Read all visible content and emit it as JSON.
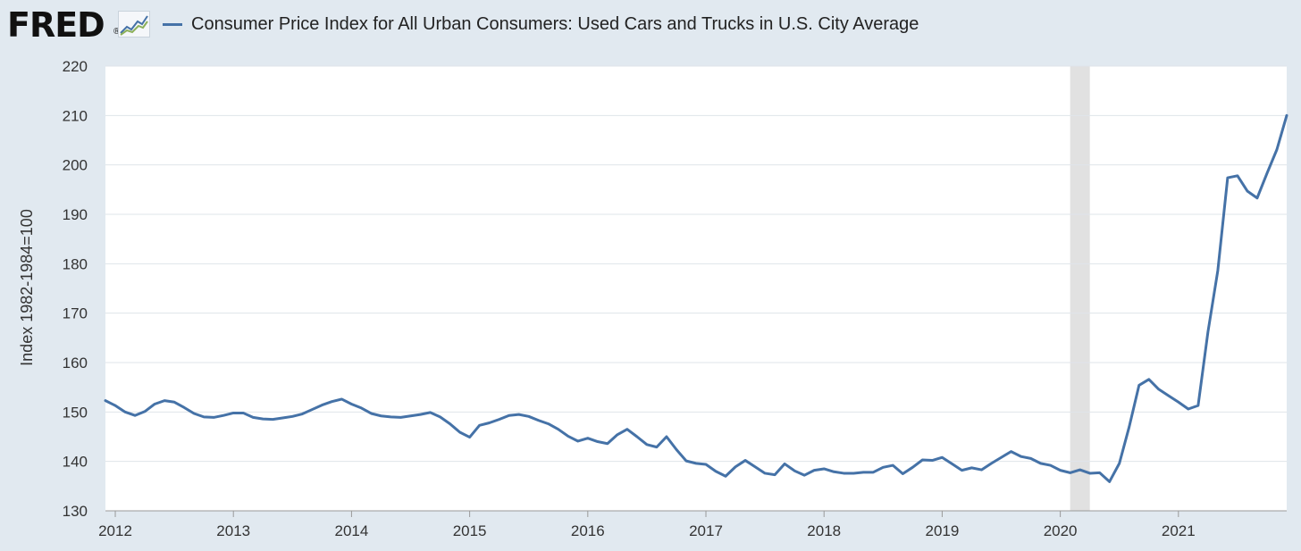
{
  "brand": {
    "name": "FRED",
    "registered": "®",
    "icon": "line-chart-icon"
  },
  "chart_data": {
    "type": "line",
    "title": "",
    "xlabel": "",
    "ylabel": "Index 1982-1984=100",
    "ylim": [
      130,
      220
    ],
    "xlim": [
      "2011-12",
      "2021-12"
    ],
    "yticks": [
      "130",
      "140",
      "150",
      "160",
      "170",
      "180",
      "190",
      "200",
      "210",
      "220"
    ],
    "xticks": [
      "2012",
      "2013",
      "2014",
      "2015",
      "2016",
      "2017",
      "2018",
      "2019",
      "2020",
      "2021"
    ],
    "grid": "horizontal",
    "legend_position": "top",
    "recession_shading": [
      [
        "2020-02",
        "2020-04"
      ]
    ],
    "series": [
      {
        "name": "Consumer Price Index for All Urban Consumers: Used Cars and Trucks in U.S. City Average",
        "color": "#4572a7",
        "x": [
          "2011-12",
          "2012-01",
          "2012-02",
          "2012-03",
          "2012-04",
          "2012-05",
          "2012-06",
          "2012-07",
          "2012-08",
          "2012-09",
          "2012-10",
          "2012-11",
          "2012-12",
          "2013-01",
          "2013-02",
          "2013-03",
          "2013-04",
          "2013-05",
          "2013-06",
          "2013-07",
          "2013-08",
          "2013-09",
          "2013-10",
          "2013-11",
          "2013-12",
          "2014-01",
          "2014-02",
          "2014-03",
          "2014-04",
          "2014-05",
          "2014-06",
          "2014-07",
          "2014-08",
          "2014-09",
          "2014-10",
          "2014-11",
          "2014-12",
          "2015-01",
          "2015-02",
          "2015-03",
          "2015-04",
          "2015-05",
          "2015-06",
          "2015-07",
          "2015-08",
          "2015-09",
          "2015-10",
          "2015-11",
          "2015-12",
          "2016-01",
          "2016-02",
          "2016-03",
          "2016-04",
          "2016-05",
          "2016-06",
          "2016-07",
          "2016-08",
          "2016-09",
          "2016-10",
          "2016-11",
          "2016-12",
          "2017-01",
          "2017-02",
          "2017-03",
          "2017-04",
          "2017-05",
          "2017-06",
          "2017-07",
          "2017-08",
          "2017-09",
          "2017-10",
          "2017-11",
          "2017-12",
          "2018-01",
          "2018-02",
          "2018-03",
          "2018-04",
          "2018-05",
          "2018-06",
          "2018-07",
          "2018-08",
          "2018-09",
          "2018-10",
          "2018-11",
          "2018-12",
          "2019-01",
          "2019-02",
          "2019-03",
          "2019-04",
          "2019-05",
          "2019-06",
          "2019-07",
          "2019-08",
          "2019-09",
          "2019-10",
          "2019-11",
          "2019-12",
          "2020-01",
          "2020-02",
          "2020-03",
          "2020-04",
          "2020-05",
          "2020-06",
          "2020-07",
          "2020-08",
          "2020-09",
          "2020-10",
          "2020-11",
          "2020-12",
          "2021-01",
          "2021-02",
          "2021-03",
          "2021-04",
          "2021-05",
          "2021-06",
          "2021-07",
          "2021-08",
          "2021-09",
          "2021-10",
          "2021-11",
          "2021-12"
        ],
        "values": [
          152.3,
          151.3,
          150.0,
          149.3,
          150.1,
          151.6,
          152.3,
          152.0,
          150.9,
          149.7,
          149.0,
          148.9,
          149.3,
          149.8,
          149.8,
          148.9,
          148.6,
          148.5,
          148.8,
          149.1,
          149.6,
          150.5,
          151.4,
          152.1,
          152.6,
          151.6,
          150.8,
          149.7,
          149.2,
          149.0,
          148.9,
          149.2,
          149.5,
          149.9,
          149.0,
          147.6,
          145.9,
          144.9,
          147.3,
          147.8,
          148.5,
          149.3,
          149.5,
          149.1,
          148.3,
          147.6,
          146.5,
          145.1,
          144.1,
          144.7,
          144.0,
          143.6,
          145.4,
          146.5,
          145.0,
          143.4,
          142.9,
          145.0,
          142.4,
          140.1,
          139.6,
          139.4,
          138.0,
          137.0,
          138.9,
          140.2,
          138.9,
          137.6,
          137.3,
          139.5,
          138.1,
          137.2,
          138.2,
          138.5,
          137.9,
          137.6,
          137.6,
          137.8,
          137.8,
          138.8,
          139.2,
          137.5,
          138.8,
          140.3,
          140.2,
          140.8,
          139.5,
          138.2,
          138.7,
          138.3,
          139.6,
          140.8,
          142.0,
          141.0,
          140.6,
          139.6,
          139.2,
          138.2,
          137.7,
          138.3,
          137.6,
          137.7,
          135.9,
          139.6,
          147.0,
          155.4,
          156.6,
          154.6,
          153.3,
          152.0,
          150.6,
          151.3,
          166.2,
          178.6,
          197.4,
          197.8,
          194.7,
          193.3,
          198.3,
          203.1,
          210.0
        ]
      }
    ]
  }
}
